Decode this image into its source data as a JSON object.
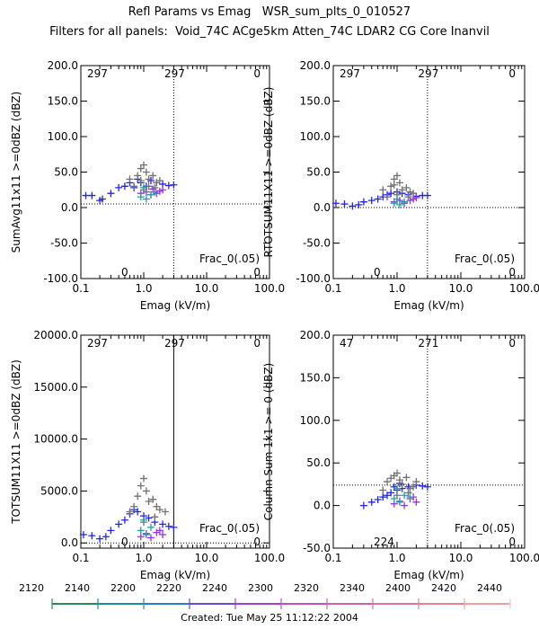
{
  "header": {
    "title": "Refl Params vs Emag   WSR_sum_plts_0_010527",
    "subtitle": "Filters for all panels:  Void_74C ACge5km Atten_74C LDAR2 CG Core Inanvil"
  },
  "chart_data": [
    {
      "type": "scatter",
      "xlabel": "Emag (kV/m)",
      "ylabel": "SumAvg11x11 >=0dBZ (dBZ)",
      "x_scale": "log",
      "xlim": [
        0.1,
        100.0
      ],
      "ylim": [
        -100.0,
        200.0
      ],
      "x_ticks": [
        "0.1",
        "1.0",
        "10.0",
        "100.0"
      ],
      "y_ticks": [
        "-100.0",
        "-50.0",
        "0.0",
        "50.0",
        "100.0",
        "150.0",
        "200.0"
      ],
      "annotations": {
        "top_left": "297",
        "top_center": "297",
        "top_right": "0",
        "bottom_left": "0",
        "bottom_right": "0",
        "frac_label": "Frac_0(.05)"
      },
      "threshold_x": 3.0,
      "threshold_y": 5.0,
      "series": [
        {
          "color": "#2020ff",
          "points": [
            [
              0.12,
              17
            ],
            [
              0.15,
              17
            ],
            [
              0.2,
              10
            ],
            [
              0.22,
              12
            ],
            [
              0.3,
              20
            ],
            [
              0.4,
              28
            ],
            [
              0.5,
              30
            ],
            [
              0.6,
              35
            ],
            [
              0.7,
              28
            ],
            [
              0.8,
              40
            ],
            [
              0.9,
              35
            ],
            [
              1.1,
              30
            ],
            [
              1.3,
              38
            ],
            [
              1.6,
              35
            ],
            [
              2.0,
              33
            ],
            [
              2.5,
              31
            ],
            [
              3.0,
              32
            ]
          ]
        },
        {
          "color": "#9a30e0",
          "points": [
            [
              0.9,
              20
            ],
            [
              1.1,
              22
            ],
            [
              1.3,
              18
            ],
            [
              1.6,
              20
            ],
            [
              1.8,
              23
            ],
            [
              2.0,
              25
            ],
            [
              1.4,
              26
            ]
          ]
        },
        {
          "color": "#707070",
          "points": [
            [
              0.7,
              30
            ],
            [
              0.8,
              45
            ],
            [
              0.9,
              55
            ],
            [
              1.0,
              60
            ],
            [
              1.1,
              50
            ],
            [
              1.2,
              40
            ],
            [
              1.4,
              45
            ],
            [
              1.6,
              35
            ],
            [
              1.8,
              38
            ],
            [
              0.6,
              40
            ],
            [
              1.0,
              25
            ],
            [
              1.2,
              30
            ],
            [
              0.9,
              38
            ],
            [
              1.5,
              28
            ]
          ]
        },
        {
          "color": "#20a0a0",
          "points": [
            [
              0.9,
              15
            ],
            [
              1.1,
              12
            ],
            [
              1.3,
              18
            ],
            [
              1.0,
              28
            ],
            [
              1.5,
              22
            ]
          ]
        }
      ]
    },
    {
      "type": "scatter",
      "xlabel": "Emag (kV/m)",
      "ylabel": "RTOTSUM11X11 >=0dBZ (dBZ)",
      "x_scale": "log",
      "xlim": [
        0.1,
        100.0
      ],
      "ylim": [
        -100.0,
        200.0
      ],
      "x_ticks": [
        "0.1",
        "1.0",
        "10.0",
        "100.0"
      ],
      "y_ticks": [
        "-100.0",
        "-50.0",
        "0.0",
        "50.0",
        "100.0",
        "150.0",
        "200.0"
      ],
      "annotations": {
        "top_left": "297",
        "top_center": "297",
        "top_right": "0",
        "bottom_left": "0",
        "bottom_right": "0",
        "frac_label": "Frac_0(.05)"
      },
      "threshold_x": 3.0,
      "threshold_y": 0.0,
      "series": [
        {
          "color": "#2020ff",
          "points": [
            [
              0.11,
              6
            ],
            [
              0.15,
              5
            ],
            [
              0.2,
              2
            ],
            [
              0.25,
              4
            ],
            [
              0.3,
              8
            ],
            [
              0.4,
              10
            ],
            [
              0.5,
              12
            ],
            [
              0.6,
              15
            ],
            [
              0.7,
              18
            ],
            [
              0.8,
              20
            ],
            [
              1.0,
              22
            ],
            [
              1.2,
              20
            ],
            [
              1.5,
              18
            ],
            [
              2.0,
              16
            ],
            [
              2.5,
              17
            ],
            [
              3.0,
              17
            ]
          ]
        },
        {
          "color": "#9a30e0",
          "points": [
            [
              0.9,
              8
            ],
            [
              1.1,
              10
            ],
            [
              1.3,
              6
            ],
            [
              1.6,
              10
            ],
            [
              1.8,
              12
            ],
            [
              2.0,
              14
            ]
          ]
        },
        {
          "color": "#707070",
          "points": [
            [
              0.7,
              15
            ],
            [
              0.8,
              30
            ],
            [
              0.9,
              40
            ],
            [
              1.0,
              45
            ],
            [
              1.1,
              35
            ],
            [
              1.2,
              25
            ],
            [
              1.4,
              28
            ],
            [
              1.6,
              22
            ],
            [
              1.8,
              20
            ],
            [
              0.6,
              25
            ],
            [
              1.0,
              18
            ],
            [
              0.9,
              32
            ],
            [
              1.5,
              15
            ]
          ]
        },
        {
          "color": "#20a0a0",
          "points": [
            [
              0.9,
              6
            ],
            [
              1.1,
              4
            ],
            [
              1.3,
              8
            ],
            [
              1.0,
              12
            ]
          ]
        }
      ]
    },
    {
      "type": "scatter",
      "xlabel": "Emag (kV/m)",
      "ylabel": "TOTSUM11X11 >=0dBZ (dBZ)",
      "x_scale": "log",
      "xlim": [
        0.1,
        100.0
      ],
      "ylim": [
        -500.0,
        20000.0
      ],
      "x_ticks": [
        "0.1",
        "1.0",
        "10.0",
        "100.0"
      ],
      "y_ticks": [
        "0.0",
        "5000.0",
        "10000.0",
        "15000.0",
        "20000.0"
      ],
      "annotations": {
        "top_left": "297",
        "top_center": "297",
        "top_right": "0",
        "bottom_left": "0",
        "bottom_right": "0",
        "frac_label": "Frac_0(.05)"
      },
      "threshold_x": 3.0,
      "threshold_y": 0.0,
      "threshold_x_style": "solid",
      "series": [
        {
          "color": "#2020ff",
          "points": [
            [
              0.11,
              800
            ],
            [
              0.15,
              700
            ],
            [
              0.2,
              400
            ],
            [
              0.25,
              600
            ],
            [
              0.3,
              1200
            ],
            [
              0.4,
              1800
            ],
            [
              0.5,
              2200
            ],
            [
              0.6,
              2800
            ],
            [
              0.7,
              3200
            ],
            [
              0.8,
              3000
            ],
            [
              1.0,
              2600
            ],
            [
              1.2,
              2400
            ],
            [
              1.5,
              2000
            ],
            [
              2.0,
              1800
            ],
            [
              2.5,
              1600
            ],
            [
              3.0,
              1500
            ]
          ]
        },
        {
          "color": "#9a30e0",
          "points": [
            [
              0.9,
              600
            ],
            [
              1.1,
              900
            ],
            [
              1.3,
              500
            ],
            [
              1.6,
              1000
            ],
            [
              1.8,
              1200
            ],
            [
              2.0,
              800
            ]
          ]
        },
        {
          "color": "#707070",
          "points": [
            [
              0.7,
              3500
            ],
            [
              0.8,
              4500
            ],
            [
              0.9,
              5500
            ],
            [
              1.0,
              6200
            ],
            [
              1.1,
              5000
            ],
            [
              1.2,
              4000
            ],
            [
              1.4,
              4200
            ],
            [
              1.6,
              3500
            ],
            [
              1.8,
              3200
            ],
            [
              2.2,
              3000
            ],
            [
              0.6,
              3000
            ],
            [
              1.0,
              2000
            ],
            [
              1.5,
              2500
            ]
          ]
        },
        {
          "color": "#20a0a0",
          "points": [
            [
              0.9,
              1200
            ],
            [
              1.1,
              800
            ],
            [
              1.3,
              1500
            ],
            [
              1.0,
              2200
            ]
          ]
        }
      ]
    },
    {
      "type": "scatter",
      "xlabel": "Emag (kV/m)",
      "ylabel": "Column Sum 1x1 >= 0 (dBZ)",
      "x_scale": "log",
      "xlim": [
        0.1,
        100.0
      ],
      "ylim": [
        -50.0,
        200.0
      ],
      "x_ticks": [
        "0.1",
        "1.0",
        "10.0",
        "100.0"
      ],
      "y_ticks": [
        "-50.0",
        "0.0",
        "50.0",
        "100.0",
        "150.0",
        "200.0"
      ],
      "annotations": {
        "top_left": "47",
        "top_center": "271",
        "top_right": "0",
        "bottom_left": "224",
        "bottom_right": "0",
        "frac_label": "Frac_0(.05)"
      },
      "threshold_x": 3.0,
      "threshold_y": 24.0,
      "series": [
        {
          "color": "#2020ff",
          "points": [
            [
              0.3,
              0
            ],
            [
              0.4,
              4
            ],
            [
              0.5,
              7
            ],
            [
              0.6,
              10
            ],
            [
              0.7,
              12
            ],
            [
              0.8,
              15
            ],
            [
              1.0,
              18
            ],
            [
              1.2,
              20
            ],
            [
              1.5,
              22
            ],
            [
              2.0,
              24
            ],
            [
              2.5,
              23
            ],
            [
              3.0,
              22
            ],
            [
              0.9,
              22
            ],
            [
              1.1,
              26
            ]
          ]
        },
        {
          "color": "#9a30e0",
          "points": [
            [
              0.9,
              2
            ],
            [
              1.1,
              5
            ],
            [
              1.3,
              0
            ],
            [
              1.6,
              8
            ],
            [
              1.8,
              10
            ],
            [
              2.0,
              4
            ]
          ]
        },
        {
          "color": "#707070",
          "points": [
            [
              0.7,
              28
            ],
            [
              0.8,
              32
            ],
            [
              0.9,
              35
            ],
            [
              1.0,
              38
            ],
            [
              1.1,
              30
            ],
            [
              1.2,
              25
            ],
            [
              1.4,
              33
            ],
            [
              1.6,
              20
            ],
            [
              1.8,
              22
            ],
            [
              0.6,
              18
            ],
            [
              1.0,
              12
            ],
            [
              1.5,
              15
            ],
            [
              2.0,
              28
            ]
          ]
        },
        {
          "color": "#20a0a0",
          "points": [
            [
              0.9,
              8
            ],
            [
              1.1,
              4
            ],
            [
              1.3,
              12
            ],
            [
              1.0,
              20
            ],
            [
              1.6,
              10
            ]
          ]
        }
      ]
    }
  ],
  "colorbar": {
    "ticks": [
      "2120",
      "2140",
      "2200",
      "2220",
      "2240",
      "2300",
      "2320",
      "2340",
      "2400",
      "2420",
      "2440"
    ],
    "colors": [
      "#2a8a5a",
      "#1a8aa0",
      "#2a7fc0",
      "#6a4ad0",
      "#a040d0",
      "#c050c0",
      "#d060b0",
      "#e070a0",
      "#e88090",
      "#f0a0a0",
      "#f6c8c8"
    ]
  },
  "footer": {
    "created": "Created: Tue May 25 11:12:22 2004"
  }
}
